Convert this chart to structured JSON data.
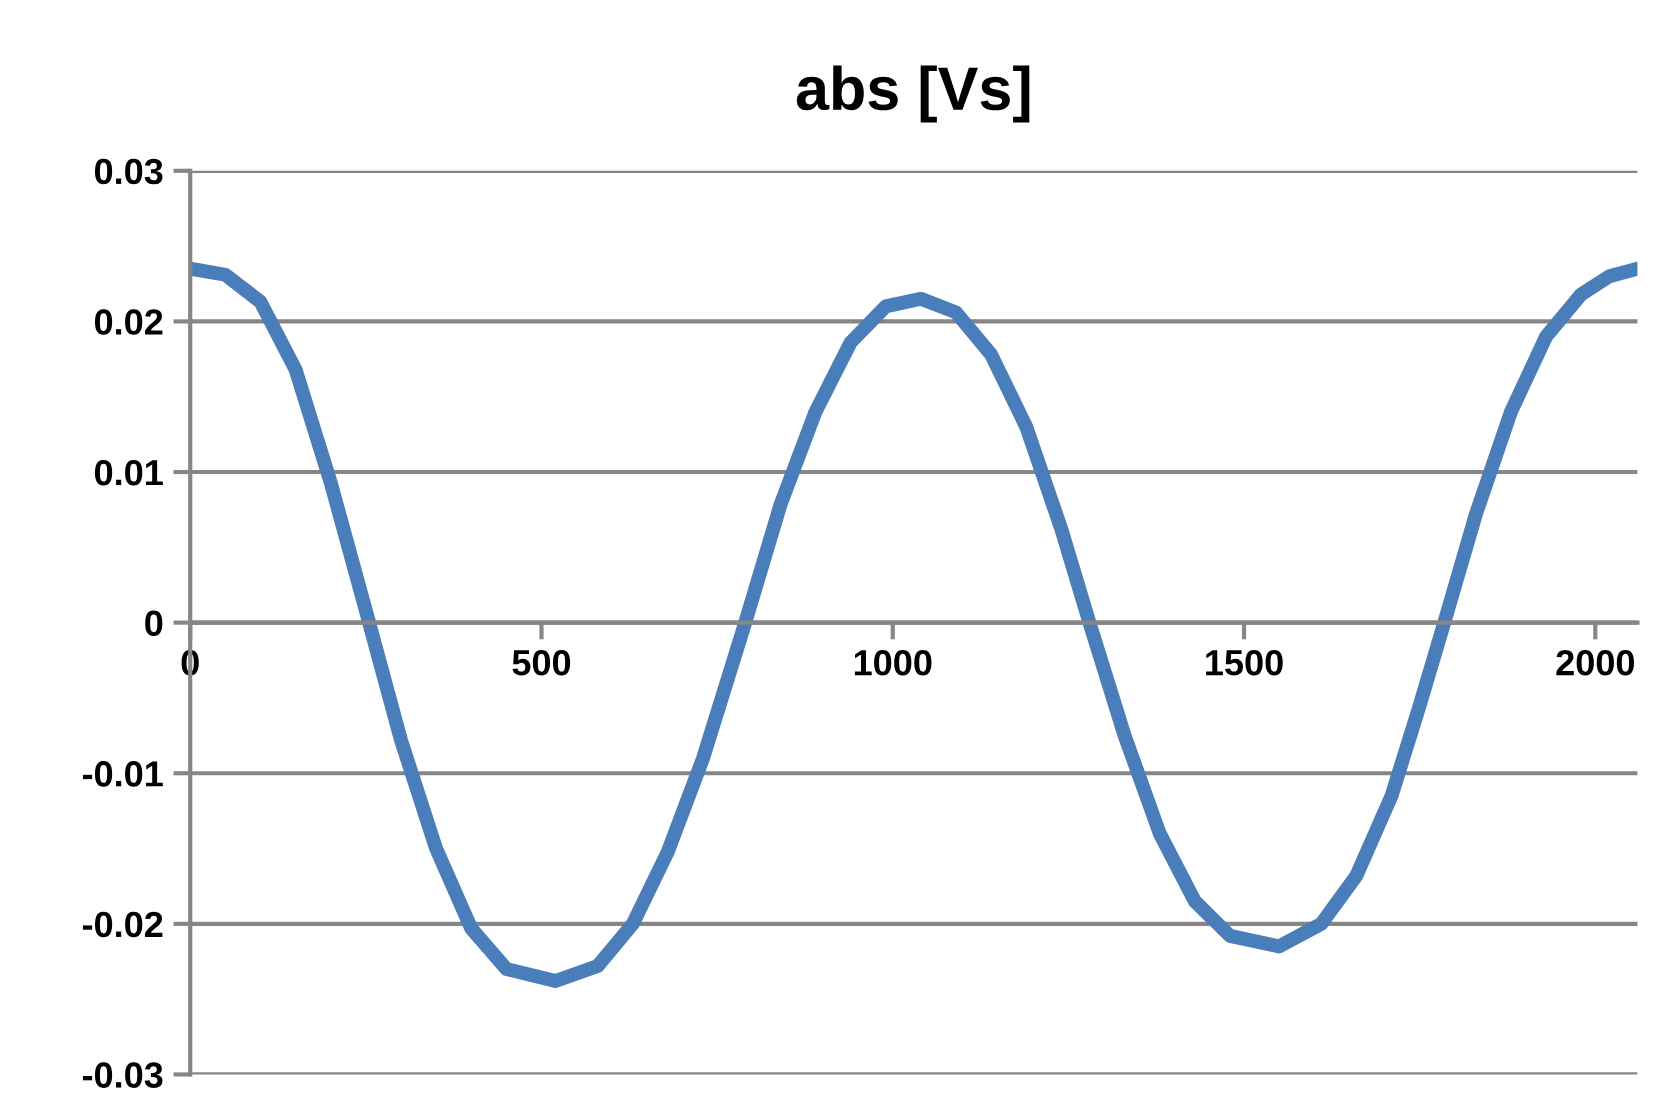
{
  "chart_data": {
    "type": "line",
    "title": "abs [Vs]",
    "series": [
      {
        "color": "#4a7ebb",
        "x": [
          0,
          50,
          100,
          150,
          200,
          250,
          300,
          350,
          400,
          450,
          520,
          580,
          630,
          680,
          730,
          790,
          840,
          890,
          940,
          990,
          1040,
          1090,
          1140,
          1190,
          1240,
          1280,
          1330,
          1380,
          1430,
          1480,
          1550,
          1610,
          1660,
          1710,
          1750,
          1785,
          1830,
          1880,
          1930,
          1980,
          2020,
          2060
        ],
        "values": [
          0.0235,
          0.0231,
          0.0213,
          0.0168,
          0.0093,
          0.0008,
          -0.0078,
          -0.015,
          -0.0203,
          -0.023,
          -0.0238,
          -0.0228,
          -0.02,
          -0.0152,
          -0.009,
          0.0,
          0.0078,
          0.014,
          0.0186,
          0.021,
          0.0215,
          0.0206,
          0.0178,
          0.013,
          0.0062,
          0.0,
          -0.0075,
          -0.014,
          -0.0185,
          -0.0208,
          -0.0215,
          -0.02,
          -0.0168,
          -0.0115,
          -0.0055,
          0.0,
          0.0072,
          0.014,
          0.019,
          0.0218,
          0.023,
          0.0235
        ]
      }
    ],
    "xlim": [
      0,
      2060
    ],
    "xticks": [
      0,
      500,
      1000,
      1500,
      2000
    ],
    "ylim": [
      -0.03,
      0.03
    ],
    "yticks": [
      0.03,
      0.02,
      0.01,
      0,
      -0.01,
      -0.02,
      -0.03
    ],
    "grid": "y",
    "marker": "none",
    "line_style": "solid"
  }
}
